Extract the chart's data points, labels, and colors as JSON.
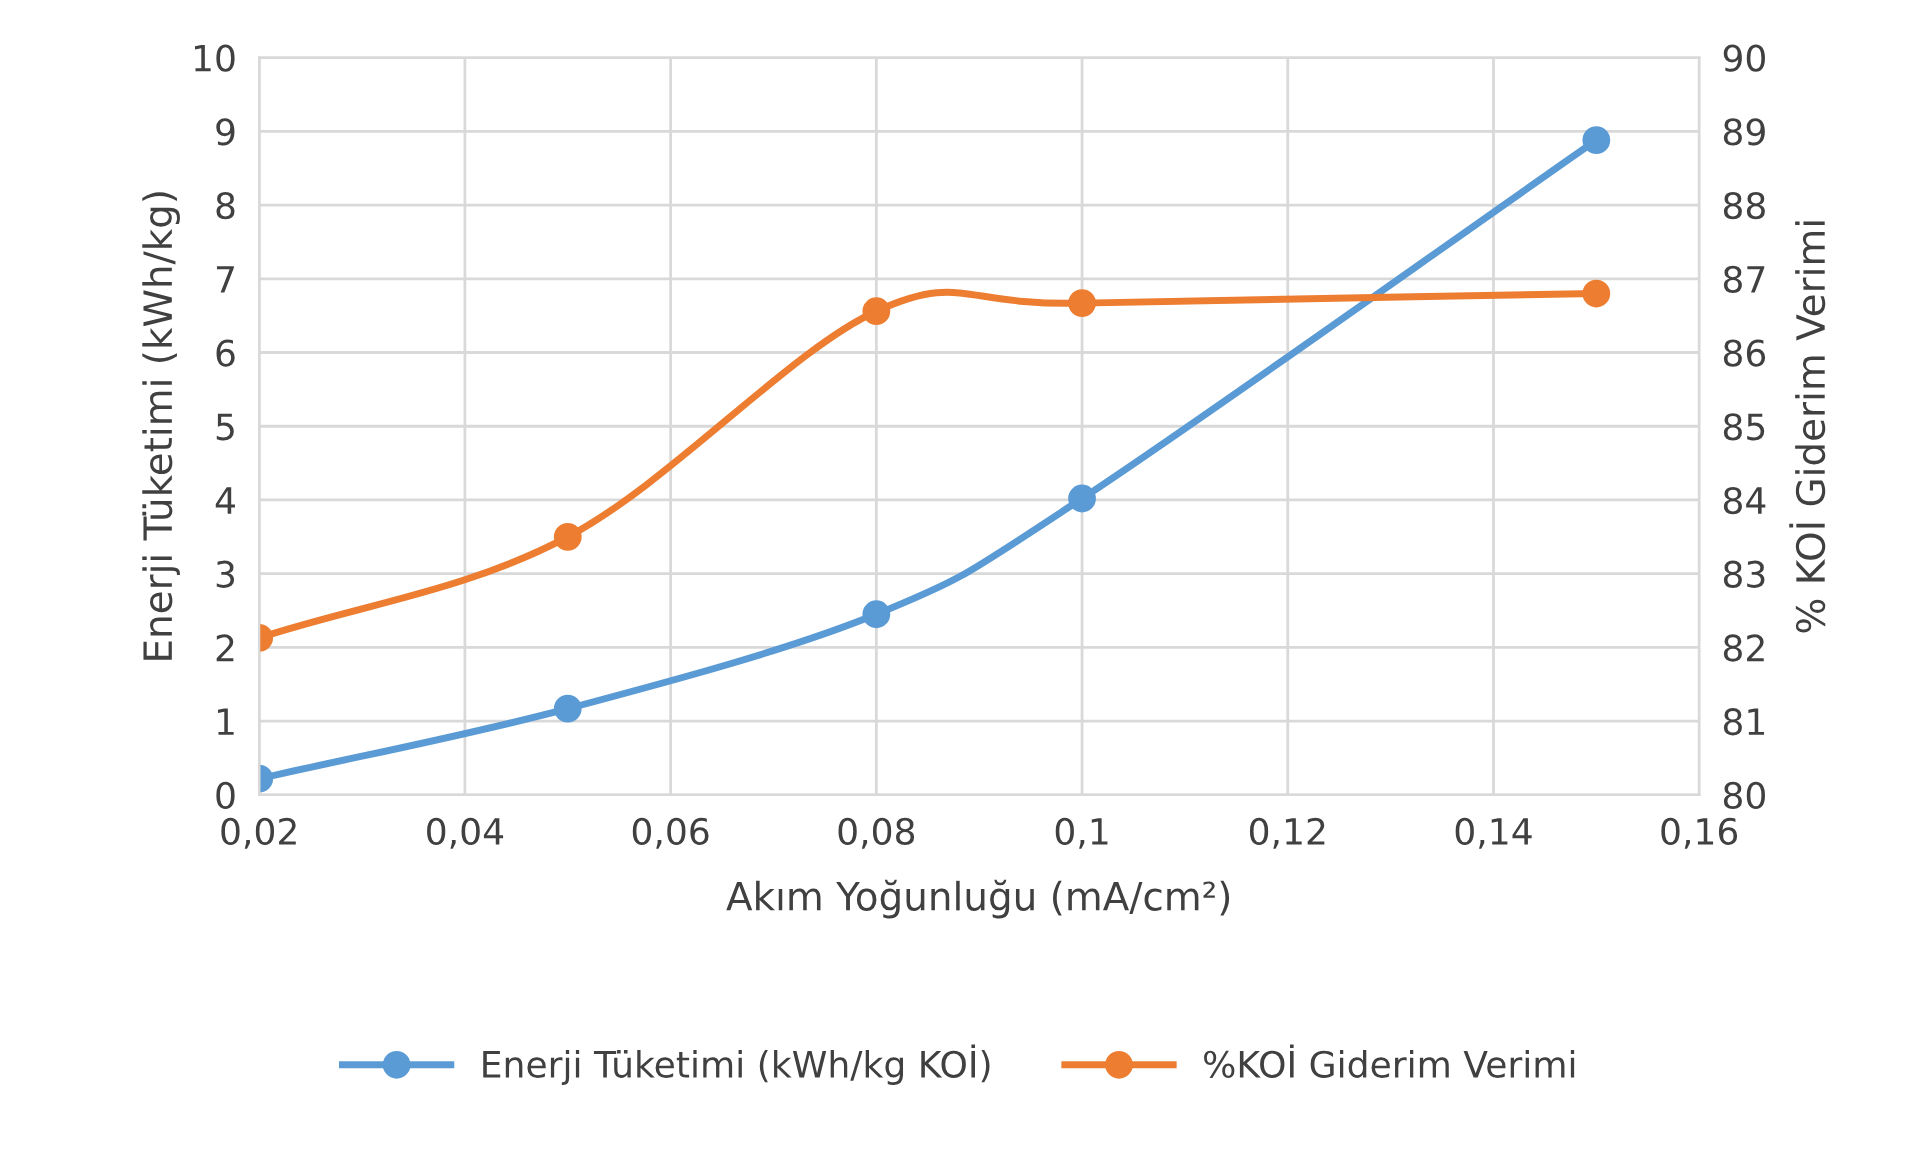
{
  "chart_data": {
    "type": "line",
    "xlabel": "Akım Yoğunluğu (mA/cm²)",
    "ylabel": "Enerji Tüketimi (kWh/kg)",
    "y2label": "% KOİ Giderim Verimi",
    "x": [
      0.02,
      0.05,
      0.08,
      0.1,
      0.15
    ],
    "series": [
      {
        "name": "Enerji Tüketimi (kWh/kg KOİ)",
        "color": "#5b9bd5",
        "values": [
          0.22,
          1.17,
          2.45,
          4.02,
          8.88
        ]
      },
      {
        "name": "%KOİ Giderim Verimi",
        "color": "#ed7d31",
        "axis": "y2",
        "values": [
          82.13,
          83.5,
          86.56,
          86.67,
          86.8
        ]
      }
    ],
    "xlim": [
      0.02,
      0.16
    ],
    "xticks": [
      {
        "value": 0.02,
        "label": "0,02"
      },
      {
        "value": 0.04,
        "label": "0,04"
      },
      {
        "value": 0.06,
        "label": "0,06"
      },
      {
        "value": 0.08,
        "label": "0,08"
      },
      {
        "value": 0.1,
        "label": "0,1"
      },
      {
        "value": 0.12,
        "label": "0,12"
      },
      {
        "value": 0.14,
        "label": "0,14"
      },
      {
        "value": 0.16,
        "label": "0,16"
      }
    ],
    "ylim": [
      0,
      10
    ],
    "yticks": [
      0,
      1,
      2,
      3,
      4,
      5,
      6,
      7,
      8,
      9,
      10
    ],
    "y2lim": [
      80,
      90
    ],
    "y2ticks": [
      80,
      81,
      82,
      83,
      84,
      85,
      86,
      87,
      88,
      89,
      90
    ],
    "grid": true,
    "legend": "bottom",
    "marker": "circle",
    "line_style": "solid"
  }
}
